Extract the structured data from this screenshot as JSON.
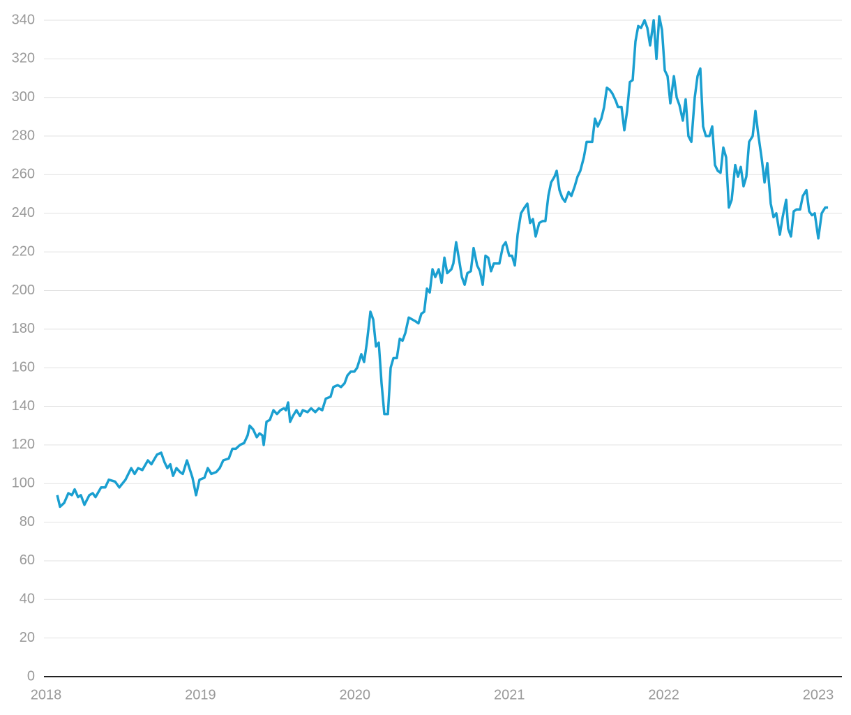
{
  "chart_data": {
    "type": "line",
    "color": "#1a9fd0",
    "grid": true,
    "xlim": [
      2018,
      2023.167
    ],
    "xticks": [
      2018,
      2019,
      2020,
      2021,
      2022,
      2023
    ],
    "ylim": [
      0,
      340
    ],
    "yticks": [
      0,
      20,
      40,
      60,
      80,
      100,
      120,
      140,
      160,
      180,
      200,
      220,
      240,
      260,
      280,
      300,
      320,
      340
    ],
    "x": [
      2018.086,
      2018.104,
      2018.131,
      2018.158,
      2018.181,
      2018.199,
      2018.221,
      2018.239,
      2018.262,
      2018.294,
      2018.316,
      2018.334,
      2018.37,
      2018.397,
      2018.42,
      2018.461,
      2018.488,
      2018.528,
      2018.565,
      2018.587,
      2018.61,
      2018.637,
      2018.673,
      2018.696,
      2018.732,
      2018.759,
      2018.781,
      2018.799,
      2018.818,
      2018.836,
      2018.858,
      2018.881,
      2018.899,
      2018.926,
      2018.962,
      2018.985,
      2019.007,
      2019.039,
      2019.061,
      2019.084,
      2019.116,
      2019.138,
      2019.161,
      2019.197,
      2019.22,
      2019.242,
      2019.269,
      2019.296,
      2019.319,
      2019.332,
      2019.355,
      2019.378,
      2019.396,
      2019.414,
      2019.423,
      2019.441,
      2019.463,
      2019.486,
      2019.509,
      2019.531,
      2019.554,
      2019.567,
      2019.581,
      2019.594,
      2019.612,
      2019.635,
      2019.658,
      2019.676,
      2019.707,
      2019.73,
      2019.757,
      2019.78,
      2019.802,
      2019.825,
      2019.856,
      2019.874,
      2019.902,
      2019.924,
      2019.947,
      2019.965,
      2019.987,
      2020.01,
      2020.028,
      2020.055,
      2020.073,
      2020.091,
      2020.114,
      2020.132,
      2020.15,
      2020.168,
      2020.186,
      2020.204,
      2020.227,
      2020.245,
      2020.263,
      2020.285,
      2020.304,
      2020.322,
      2020.34,
      2020.362,
      2020.385,
      2020.407,
      2020.425,
      2020.444,
      2020.462,
      2020.48,
      2020.498,
      2020.516,
      2020.534,
      2020.556,
      2020.575,
      2020.593,
      2020.611,
      2020.638,
      2020.651,
      2020.669,
      2020.692,
      2020.706,
      2020.724,
      2020.742,
      2020.764,
      2020.782,
      2020.805,
      2020.823,
      2020.841,
      2020.859,
      2020.877,
      2020.895,
      2020.913,
      2020.949,
      2020.972,
      2020.99,
      2021.013,
      2021.031,
      2021.049,
      2021.067,
      2021.089,
      2021.112,
      2021.13,
      2021.148,
      2021.166,
      2021.184,
      2021.207,
      2021.229,
      2021.247,
      2021.266,
      2021.284,
      2021.306,
      2021.32,
      2021.338,
      2021.356,
      2021.374,
      2021.397,
      2021.415,
      2021.437,
      2021.455,
      2021.473,
      2021.496,
      2021.514,
      2021.537,
      2021.55,
      2021.568,
      2021.586,
      2021.609,
      2021.627,
      2021.645,
      2021.663,
      2021.681,
      2021.704,
      2021.717,
      2021.74,
      2021.758,
      2021.776,
      2021.794,
      2021.812,
      2021.83,
      2021.848,
      2021.866,
      2021.889,
      2021.907,
      2021.925,
      2021.948,
      2021.966,
      2021.984,
      2022.002,
      2022.02,
      2022.038,
      2022.056,
      2022.079,
      2022.097,
      2022.115,
      2022.137,
      2022.155,
      2022.173,
      2022.192,
      2022.214,
      2022.232,
      2022.25,
      2022.268,
      2022.286,
      2022.309,
      2022.327,
      2022.345,
      2022.363,
      2022.381,
      2022.399,
      2022.417,
      2022.435,
      2022.453,
      2022.476,
      2022.494,
      2022.512,
      2022.53,
      2022.548,
      2022.566,
      2022.589,
      2022.607,
      2022.625,
      2022.648,
      2022.666,
      2022.684,
      2022.706,
      2022.724,
      2022.742,
      2022.765,
      2022.783,
      2022.806,
      2022.819,
      2022.837,
      2022.855,
      2022.873,
      2022.896,
      2022.914,
      2022.937,
      2022.955,
      2022.973,
      2022.991,
      2023.014,
      2023.036,
      2023.059,
      2023.077
    ],
    "values": [
      94,
      88,
      90,
      95,
      94,
      97,
      93,
      94,
      89,
      94,
      95,
      93,
      98,
      98,
      102,
      101,
      98,
      102,
      108,
      105,
      108,
      107,
      112,
      110,
      115,
      116,
      111,
      108,
      110,
      104,
      108,
      106,
      105,
      112,
      103,
      94,
      102,
      103,
      108,
      105,
      106,
      108,
      112,
      113,
      118,
      118,
      120,
      121,
      125,
      130,
      128,
      124,
      126,
      125,
      120,
      132,
      133,
      138,
      136,
      138,
      139,
      138,
      142,
      132,
      135,
      138,
      135,
      138,
      137,
      139,
      137,
      139,
      138,
      144,
      145,
      150,
      151,
      150,
      152,
      156,
      158,
      158,
      160,
      167,
      163,
      173,
      189,
      185,
      171,
      173,
      152,
      136,
      136,
      160,
      165,
      165,
      175,
      174,
      178,
      186,
      185,
      184,
      183,
      188,
      189,
      201,
      199,
      211,
      207,
      211,
      204,
      217,
      209,
      211,
      214,
      225,
      214,
      207,
      203,
      209,
      210,
      222,
      213,
      210,
      203,
      218,
      217,
      210,
      214,
      214,
      223,
      225,
      218,
      218,
      213,
      229,
      240,
      243,
      245,
      235,
      237,
      228,
      235,
      236,
      236,
      249,
      256,
      259,
      262,
      252,
      248,
      246,
      251,
      249,
      254,
      259,
      262,
      269,
      277,
      277,
      277,
      289,
      285,
      289,
      295,
      305,
      304,
      302,
      298,
      295,
      295,
      283,
      293,
      308,
      309,
      329,
      337,
      336,
      340,
      336,
      327,
      340,
      320,
      342,
      335,
      314,
      311,
      297,
      311,
      300,
      296,
      288,
      299,
      280,
      277,
      300,
      311,
      315,
      285,
      280,
      280,
      285,
      265,
      262,
      261,
      274,
      269,
      243,
      247,
      265,
      259,
      264,
      254,
      259,
      277,
      280,
      293,
      281,
      268,
      256,
      266,
      245,
      238,
      240,
      229,
      238,
      247,
      232,
      228,
      241,
      242,
      242,
      249,
      252,
      241,
      239,
      240,
      227,
      240,
      243,
      243
    ]
  }
}
